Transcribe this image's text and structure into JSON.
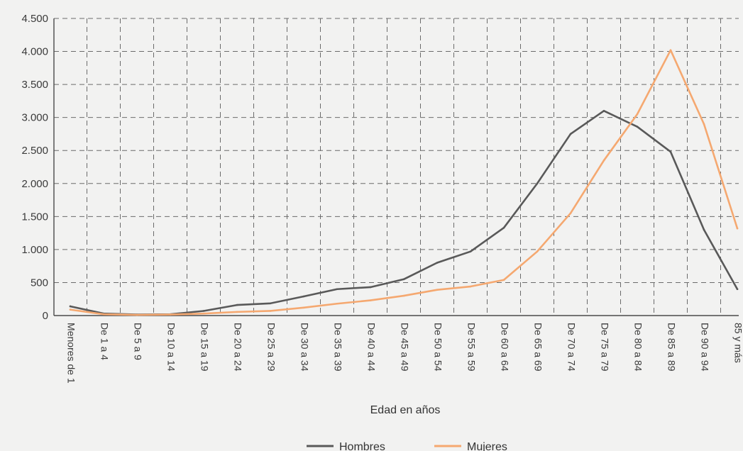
{
  "chart_data": {
    "type": "line",
    "title": "",
    "xlabel": "Edad en años",
    "ylabel": "",
    "ylim": [
      0,
      4500
    ],
    "yticks": [
      0,
      500,
      1000,
      1500,
      2000,
      2500,
      3000,
      3500,
      4000,
      4500
    ],
    "ytick_labels": [
      "0",
      "500",
      "1.000",
      "1.500",
      "2.000",
      "2.500",
      "3.000",
      "3.500",
      "4.000",
      "4.500"
    ],
    "grid": true,
    "legend": "bottom",
    "categories": [
      "Menores de 1",
      "De 1 a 4",
      "De 5 a 9",
      "De 10 a 14",
      "De 15 a 19",
      "De 20 a 24",
      "De 25 a 29",
      "De 30 a 34",
      "De 35 a 39",
      "De 40 a 44",
      "De 45 a 49",
      "De 50 a 54",
      "De 55 a 59",
      "De 60 a 64",
      "De 65 a 69",
      "De 70 a 74",
      "De 75 a 79",
      "De 80 a 84",
      "De 85 a 89",
      "De 90 a 94",
      "85 y más"
    ],
    "series": [
      {
        "name": "Hombres",
        "color": "#595959",
        "values": [
          140,
          30,
          15,
          20,
          70,
          160,
          185,
          290,
          400,
          430,
          550,
          800,
          970,
          1330,
          2000,
          2750,
          3100,
          2860,
          2480,
          1300,
          400
        ]
      },
      {
        "name": "Mujeres",
        "color": "#f5a870",
        "values": [
          90,
          20,
          10,
          15,
          30,
          55,
          70,
          120,
          180,
          230,
          300,
          390,
          440,
          540,
          970,
          1550,
          2350,
          3050,
          4020,
          2900,
          1320
        ]
      }
    ]
  }
}
